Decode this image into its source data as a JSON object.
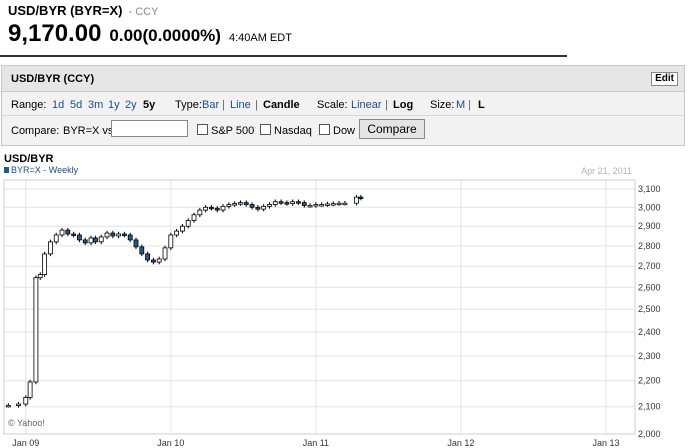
{
  "header": {
    "title": "USD/BYR (BYR=X)",
    "exchange": "- CCY",
    "price": "9,170.00",
    "change": "0.00",
    "change_pct": "(0.0000%)",
    "time": "4:40AM EDT"
  },
  "panel": {
    "title": "USD/BYR (CCY)",
    "edit_label": "Edit",
    "range_label": "Range:",
    "ranges": [
      "1d",
      "5d",
      "3m",
      "1y",
      "2y",
      "5y"
    ],
    "range_selected": "5y",
    "type_label": "Type:",
    "types": [
      "Bar",
      "Line",
      "Candle"
    ],
    "type_selected": "Candle",
    "scale_label": "Scale:",
    "scales": [
      "Linear",
      "Log"
    ],
    "scale_selected": "Log",
    "size_label": "Size:",
    "sizes": [
      "M",
      "L"
    ],
    "size_selected": "L",
    "compare_label": "Compare:",
    "compare_prefix": "BYR=X vs",
    "compare_value": "",
    "compare_checks": [
      "S&P 500",
      "Nasdaq",
      "Dow"
    ],
    "compare_button": "Compare"
  },
  "colors": {
    "candle_up": "#ffffff",
    "candle_down": "#1f5a96",
    "candle_outline": "#000000",
    "grid": "#e3e3e3",
    "axis_text": "#333333",
    "link": "#1c4e8c"
  },
  "chart_data": {
    "type": "candlestick",
    "title": "USD/BYR",
    "legend": "BYR=X - Weekly",
    "date_label": "Apr 21, 2011",
    "copyright": "© Yahoo!",
    "scale": "log",
    "ylim": [
      2000,
      3150
    ],
    "y_ticks": [
      2000,
      2100,
      2200,
      2300,
      2400,
      2500,
      2600,
      2700,
      2800,
      2900,
      3000,
      3100
    ],
    "y_tick_labels": [
      "2,000",
      "2,100",
      "2,200",
      "2,300",
      "2,400",
      "2,500",
      "2,600",
      "2,700",
      "2,800",
      "2,900",
      "3,000",
      "3,100"
    ],
    "x_ticks": [
      "Jan 09",
      "Jan 10",
      "Jan 11",
      "Jan 12",
      "Jan 13"
    ],
    "x_tick_years": [
      2009,
      2010,
      2011,
      2012,
      2013
    ],
    "x_range": [
      2008.85,
      2013.2
    ],
    "grid": true,
    "series": [
      {
        "interval": "weekly",
        "points": [
          [
            2008.88,
            2105
          ],
          [
            2008.95,
            2110
          ],
          [
            2009.0,
            2135
          ],
          [
            2009.03,
            2195
          ],
          [
            2009.07,
            2645
          ],
          [
            2009.1,
            2660
          ],
          [
            2009.13,
            2760
          ],
          [
            2009.17,
            2820
          ],
          [
            2009.21,
            2855
          ],
          [
            2009.25,
            2880
          ],
          [
            2009.29,
            2860
          ],
          [
            2009.33,
            2855
          ],
          [
            2009.37,
            2830
          ],
          [
            2009.41,
            2815
          ],
          [
            2009.45,
            2840
          ],
          [
            2009.48,
            2820
          ],
          [
            2009.52,
            2845
          ],
          [
            2009.56,
            2865
          ],
          [
            2009.6,
            2850
          ],
          [
            2009.64,
            2860
          ],
          [
            2009.68,
            2855
          ],
          [
            2009.72,
            2830
          ],
          [
            2009.76,
            2795
          ],
          [
            2009.8,
            2760
          ],
          [
            2009.84,
            2730
          ],
          [
            2009.88,
            2720
          ],
          [
            2009.92,
            2735
          ],
          [
            2009.96,
            2790
          ],
          [
            2010.0,
            2855
          ],
          [
            2010.04,
            2875
          ],
          [
            2010.08,
            2900
          ],
          [
            2010.12,
            2930
          ],
          [
            2010.16,
            2960
          ],
          [
            2010.2,
            2985
          ],
          [
            2010.24,
            3000
          ],
          [
            2010.28,
            2995
          ],
          [
            2010.32,
            2985
          ],
          [
            2010.36,
            3005
          ],
          [
            2010.4,
            3015
          ],
          [
            2010.44,
            3020
          ],
          [
            2010.48,
            3025
          ],
          [
            2010.52,
            3015
          ],
          [
            2010.56,
            3000
          ],
          [
            2010.6,
            2990
          ],
          [
            2010.64,
            3005
          ],
          [
            2010.68,
            3015
          ],
          [
            2010.72,
            3030
          ],
          [
            2010.76,
            3025
          ],
          [
            2010.8,
            3020
          ],
          [
            2010.84,
            3030
          ],
          [
            2010.88,
            3025
          ],
          [
            2010.92,
            3010
          ],
          [
            2010.96,
            3010
          ],
          [
            2011.0,
            3015
          ],
          [
            2011.04,
            3015
          ],
          [
            2011.08,
            3018
          ],
          [
            2011.12,
            3020
          ],
          [
            2011.16,
            3022
          ],
          [
            2011.2,
            3022
          ],
          [
            2011.28,
            3055
          ],
          [
            2011.31,
            3050
          ]
        ]
      }
    ]
  }
}
